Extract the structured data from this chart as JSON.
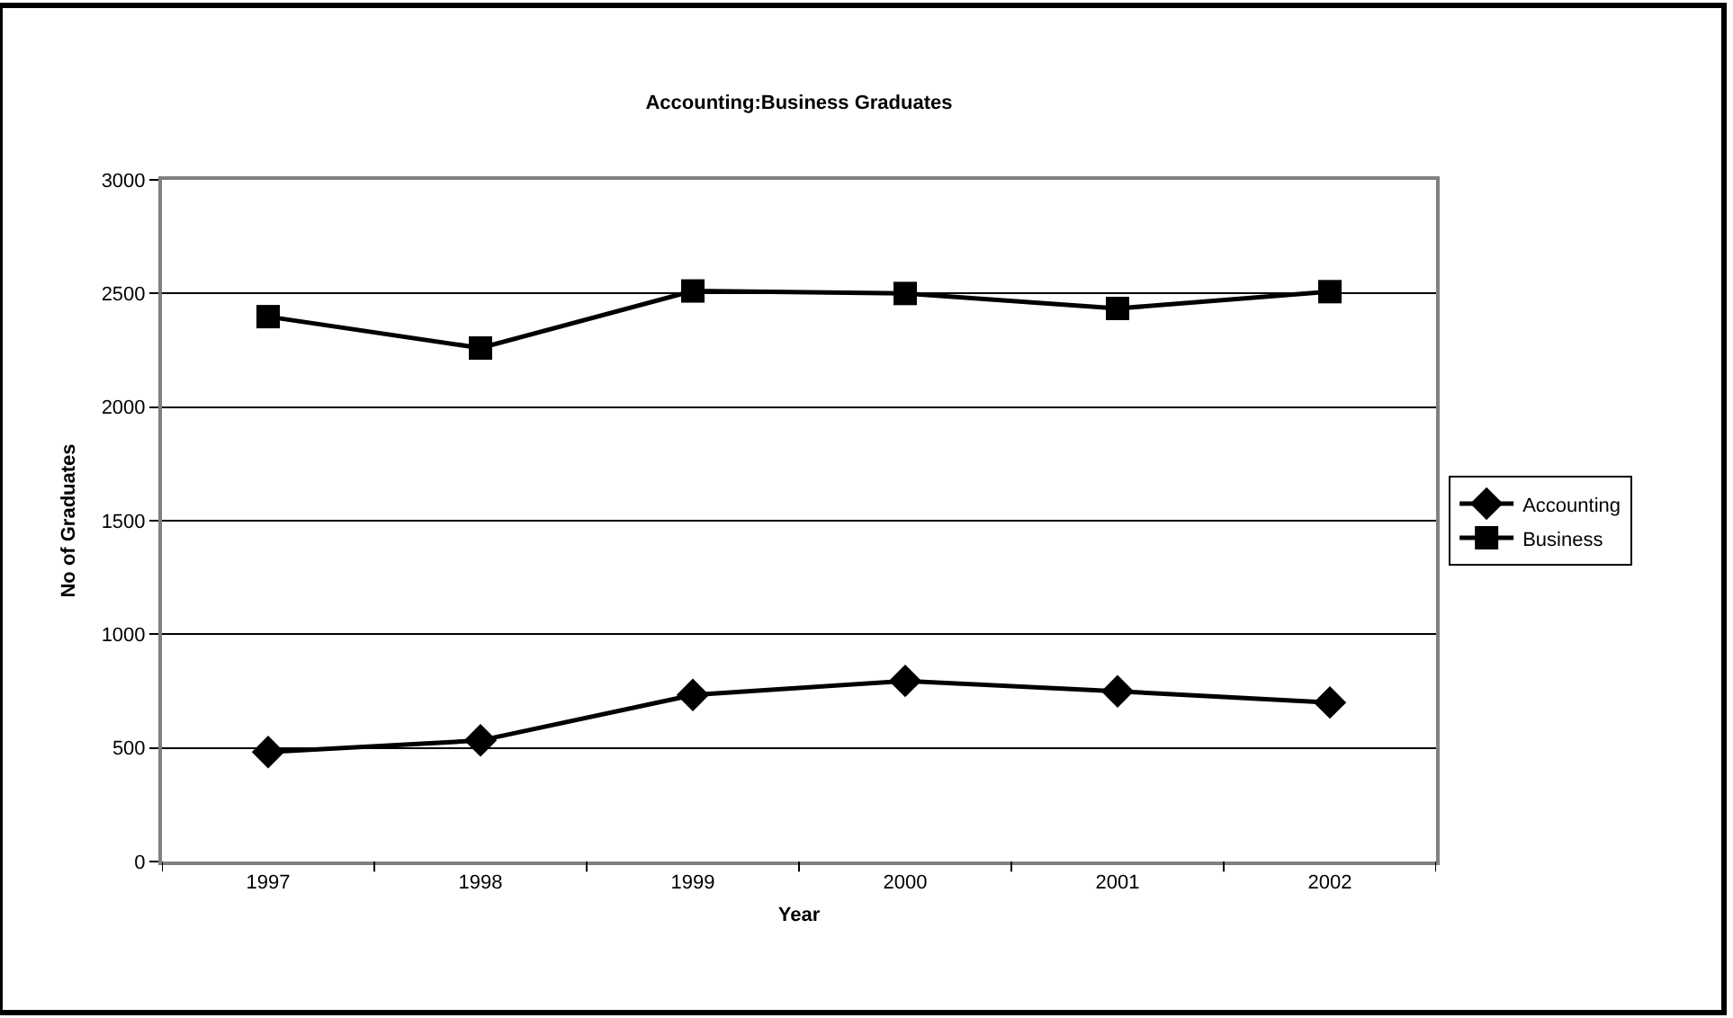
{
  "chart_data": {
    "type": "line",
    "title": "Accounting:Business Graduates",
    "xlabel": "Year",
    "ylabel": "No of Graduates",
    "categories": [
      "1997",
      "1998",
      "1999",
      "2000",
      "2001",
      "2002"
    ],
    "series": [
      {
        "name": "Accounting",
        "color": "#000000",
        "marker": "diamond",
        "values": [
          482,
          533,
          733,
          795,
          749,
          700
        ]
      },
      {
        "name": "Business",
        "color": "#000000",
        "marker": "square",
        "values": [
          2398,
          2260,
          2511,
          2500,
          2434,
          2508
        ]
      }
    ],
    "ylim": [
      0,
      3000
    ],
    "yticks": [
      0,
      500,
      1000,
      1500,
      2000,
      2500,
      3000
    ],
    "grid": "y",
    "legend": "right",
    "line_style": "solid"
  }
}
